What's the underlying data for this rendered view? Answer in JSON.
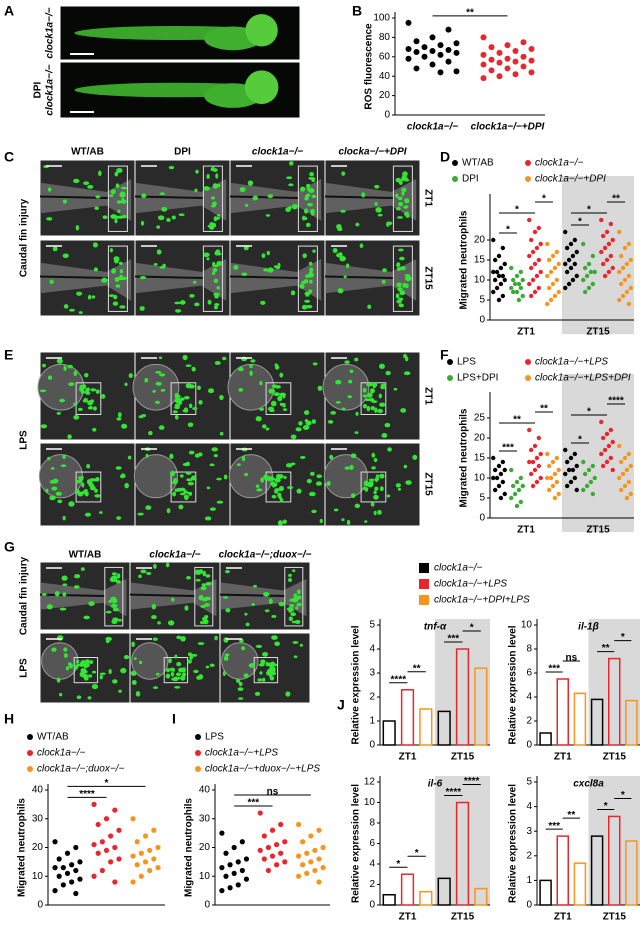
{
  "panel_labels": [
    "A",
    "B",
    "C",
    "D",
    "E",
    "F",
    "G",
    "H",
    "I",
    "J"
  ],
  "images": {
    "A": {
      "row_labels": [
        [
          "clock1a−/−"
        ],
        [
          "DPI",
          "clock1a−/−"
        ]
      ]
    },
    "C": {
      "column_labels": [
        "WT/AB",
        "DPI",
        "clock1a−/−",
        "clocka−/−+DPI"
      ],
      "row_labels": [
        "ZT1",
        "ZT15"
      ],
      "side_label": "Caudal fin injury"
    },
    "E": {
      "row_labels": [
        "ZT1",
        "ZT15"
      ],
      "side_label": "LPS"
    },
    "G": {
      "column_labels": [
        "WT/AB",
        "clock1a−/−",
        "clock1a−/−;duox−/−"
      ],
      "side_labels": [
        "Caudal fin injury",
        "LPS"
      ]
    }
  },
  "chart_data": [
    {
      "type": "strip",
      "ylabel": "ROS fluorescence",
      "categories": [
        "clock1a−/−",
        "clock1a−/−+DPI"
      ],
      "colors": [
        "#000000",
        "#e8262c"
      ],
      "values": [
        [
          95,
          88,
          80,
          76,
          74,
          72,
          70,
          68,
          67,
          66,
          65,
          64,
          62,
          60,
          58,
          55,
          52,
          48,
          45,
          44
        ],
        [
          80,
          75,
          72,
          70,
          68,
          66,
          64,
          62,
          60,
          58,
          57,
          56,
          55,
          54,
          52,
          50,
          48,
          46,
          44,
          42,
          40,
          38
        ]
      ],
      "ylim": [
        0,
        100
      ],
      "yticks": [
        0,
        20,
        40,
        60,
        80,
        100
      ],
      "significance": [
        {
          "label": "**",
          "pair": [
            0,
            1
          ]
        }
      ]
    },
    {
      "type": "strip",
      "ylabel": "Migrated neutrophils",
      "categories": [
        "ZT1",
        "ZT15"
      ],
      "shaded_category": 1,
      "series": [
        {
          "name": "WT/AB",
          "color": "#000000",
          "values": [
            [
              20,
              18,
              16,
              15,
              14,
              13,
              12,
              12,
              11,
              11,
              10,
              10,
              9,
              8,
              7,
              6,
              5
            ],
            [
              22,
              20,
              19,
              18,
              17,
              16,
              15,
              14,
              14,
              13,
              12,
              11,
              10,
              9,
              8
            ]
          ]
        },
        {
          "name": "DPI",
          "color": "#3aa935",
          "values": [
            [
              13,
              12,
              11,
              10,
              10,
              9,
              9,
              8,
              8,
              7,
              7,
              6,
              5
            ],
            [
              19,
              16,
              14,
              13,
              12,
              12,
              11,
              10,
              9,
              8,
              7
            ]
          ]
        },
        {
          "name": "clock1a−/−",
          "color": "#e8262c",
          "values": [
            [
              25,
              23,
              22,
              20,
              19,
              18,
              17,
              16,
              15,
              14,
              13,
              12,
              11,
              10,
              9,
              8,
              7,
              6
            ],
            [
              25,
              24,
              22,
              21,
              20,
              19,
              18,
              17,
              16,
              15,
              14,
              13,
              12,
              11
            ]
          ]
        },
        {
          "name": "clock1a−/−+DPI",
          "color": "#f7941d",
          "values": [
            [
              19,
              17,
              16,
              15,
              14,
              13,
              12,
              11,
              10,
              9,
              8,
              7,
              6,
              5,
              4
            ],
            [
              22,
              19,
              18,
              16,
              15,
              14,
              13,
              12,
              11,
              10,
              9,
              8,
              7,
              6,
              5,
              4
            ]
          ]
        }
      ],
      "ylim": [
        0,
        30
      ],
      "yticks": [
        0,
        5,
        10,
        15,
        20
      ],
      "significance": [
        {
          "label": "*",
          "pair": [
            0,
            1
          ]
        },
        {
          "label": "*",
          "pair": [
            0,
            2
          ]
        },
        {
          "label": "*",
          "pair": [
            2,
            3
          ]
        },
        {
          "label": "*",
          "pair": [
            4,
            5
          ]
        },
        {
          "label": "*",
          "pair": [
            4,
            6
          ]
        },
        {
          "label": "**",
          "pair": [
            6,
            7
          ]
        }
      ]
    },
    {
      "type": "strip",
      "ylabel": "Migrated neutrophils",
      "categories": [
        "ZT1",
        "ZT15"
      ],
      "shaded_category": 1,
      "series": [
        {
          "name": "LPS",
          "color": "#000000",
          "values": [
            [
              15,
              14,
              13,
              12,
              12,
              11,
              10,
              10,
              9,
              8,
              7,
              6,
              5
            ],
            [
              17,
              16,
              15,
              14,
              13,
              12,
              12,
              11,
              10,
              9,
              8,
              7
            ]
          ]
        },
        {
          "name": "LPS+DPI",
          "color": "#3aa935",
          "values": [
            [
              12,
              10,
              9,
              8,
              8,
              7,
              6,
              5,
              4,
              3
            ],
            [
              14,
              13,
              12,
              11,
              10,
              9,
              8,
              7,
              6
            ]
          ]
        },
        {
          "name": "clock1a−/−+LPS",
          "color": "#e8262c",
          "values": [
            [
              22,
              20,
              18,
              17,
              16,
              15,
              14,
              14,
              13,
              12,
              11,
              10,
              9,
              8
            ],
            [
              24,
              22,
              21,
              20,
              19,
              18,
              17,
              16,
              15,
              14,
              13,
              12
            ]
          ]
        },
        {
          "name": "clock1a−/−+LPS+DPI",
          "color": "#f7941d",
          "values": [
            [
              16,
              15,
              14,
              13,
              12,
              11,
              10,
              10,
              9,
              8,
              7,
              6,
              5
            ],
            [
              18,
              16,
              15,
              14,
              13,
              12,
              11,
              10,
              9,
              8,
              7,
              6,
              5
            ]
          ]
        }
      ],
      "ylim": [
        0,
        30
      ],
      "yticks": [
        0,
        5,
        10,
        15,
        20,
        25
      ],
      "significance": [
        {
          "label": "***",
          "pair": [
            0,
            1
          ]
        },
        {
          "label": "**",
          "pair": [
            0,
            2
          ]
        },
        {
          "label": "**",
          "pair": [
            2,
            3
          ]
        },
        {
          "label": "*",
          "pair": [
            4,
            5
          ]
        },
        {
          "label": "*",
          "pair": [
            4,
            6
          ]
        },
        {
          "label": "****",
          "pair": [
            6,
            7
          ]
        }
      ]
    },
    {
      "type": "strip",
      "ylabel": "Migrated neutrophils",
      "series": [
        {
          "name": "WT/AB",
          "color": "#000000",
          "values": [
            22,
            20,
            18,
            16,
            15,
            14,
            13,
            13,
            12,
            11,
            10,
            9,
            8,
            7,
            5,
            4
          ]
        },
        {
          "name": "clock1a−/−",
          "color": "#e8262c",
          "values": [
            35,
            33,
            30,
            28,
            26,
            24,
            22,
            21,
            20,
            19,
            18,
            16,
            15,
            12,
            10,
            8
          ]
        },
        {
          "name": "clock1a−/−;duox−/−",
          "color": "#f7941d",
          "values": [
            30,
            26,
            24,
            22,
            20,
            19,
            18,
            17,
            16,
            15,
            14,
            13,
            12,
            10,
            8
          ]
        }
      ],
      "ylim": [
        0,
        40
      ],
      "yticks": [
        0,
        10,
        20,
        30,
        40
      ],
      "significance": [
        {
          "label": "****",
          "pair": [
            0,
            1
          ]
        },
        {
          "label": "*",
          "pair": [
            0,
            2
          ]
        }
      ]
    },
    {
      "type": "strip",
      "ylabel": "Migrated neutrophils",
      "series": [
        {
          "name": "LPS",
          "color": "#000000",
          "values": [
            25,
            22,
            20,
            18,
            16,
            15,
            14,
            13,
            12,
            11,
            10,
            9,
            7,
            6,
            5
          ]
        },
        {
          "name": "clock1a−/−+LPS",
          "color": "#e8262c",
          "values": [
            32,
            28,
            26,
            24,
            22,
            21,
            20,
            19,
            18,
            17,
            16,
            15,
            14,
            12
          ]
        },
        {
          "name": "clock1a−/−+duox−/−+LPS",
          "color": "#f7941d",
          "values": [
            28,
            26,
            24,
            22,
            20,
            19,
            18,
            17,
            16,
            15,
            14,
            13,
            12,
            11,
            10,
            8
          ]
        }
      ],
      "ylim": [
        0,
        40
      ],
      "yticks": [
        0,
        10,
        20,
        30,
        40
      ],
      "significance": [
        {
          "label": "***",
          "pair": [
            0,
            1
          ]
        },
        {
          "label": "ns",
          "pair": [
            0,
            2
          ]
        }
      ]
    },
    {
      "type": "bar-panels",
      "ylabel": "Relative expression level",
      "categories": [
        "ZT1",
        "ZT15"
      ],
      "shaded_category": 1,
      "series": [
        {
          "name": "clock1a−/−",
          "color": "#000000"
        },
        {
          "name": "clock1a−/−+LPS",
          "color": "#e8262c"
        },
        {
          "name": "clock1a−/−+DPI+LPS",
          "color": "#f7941d"
        }
      ],
      "panels": [
        {
          "title": "tnf-α",
          "ylim": [
            0,
            5
          ],
          "yticks": [
            0,
            1,
            2,
            3,
            4,
            5
          ],
          "values": [
            [
              1.0,
              1.4
            ],
            [
              2.3,
              4.0
            ],
            [
              1.5,
              3.2
            ]
          ],
          "significance": [
            {
              "label": "****",
              "pair": [
                0,
                1
              ]
            },
            {
              "label": "**",
              "pair": [
                1,
                2
              ]
            },
            {
              "label": "***",
              "pair": [
                3,
                4
              ]
            },
            {
              "label": "*",
              "pair": [
                4,
                5
              ]
            }
          ]
        },
        {
          "title": "il-1β",
          "ylim": [
            0,
            10
          ],
          "yticks": [
            0,
            2,
            4,
            6,
            8,
            10
          ],
          "values": [
            [
              1.0,
              3.8
            ],
            [
              5.5,
              7.2
            ],
            [
              4.3,
              3.7
            ]
          ],
          "significance": [
            {
              "label": "***",
              "pair": [
                0,
                1
              ]
            },
            {
              "label": "ns",
              "pair": [
                1,
                2
              ]
            },
            {
              "label": "**",
              "pair": [
                3,
                4
              ]
            },
            {
              "label": "*",
              "pair": [
                4,
                5
              ]
            }
          ]
        },
        {
          "title": "il-6",
          "ylim": [
            0,
            12
          ],
          "yticks": [
            0,
            2,
            4,
            6,
            8,
            10,
            12
          ],
          "values": [
            [
              1.0,
              2.6
            ],
            [
              3.0,
              10.0
            ],
            [
              1.3,
              1.6
            ]
          ],
          "significance": [
            {
              "label": "*",
              "pair": [
                0,
                1
              ]
            },
            {
              "label": "*",
              "pair": [
                1,
                2
              ]
            },
            {
              "label": "****",
              "pair": [
                3,
                4
              ]
            },
            {
              "label": "****",
              "pair": [
                4,
                5
              ]
            }
          ]
        },
        {
          "title": "cxcl8a",
          "ylim": [
            0,
            5
          ],
          "yticks": [
            0,
            1,
            2,
            3,
            4,
            5
          ],
          "values": [
            [
              1.0,
              2.8
            ],
            [
              2.8,
              3.6
            ],
            [
              1.7,
              2.6
            ]
          ],
          "significance": [
            {
              "label": "***",
              "pair": [
                0,
                1
              ]
            },
            {
              "label": "**",
              "pair": [
                1,
                2
              ]
            },
            {
              "label": "*",
              "pair": [
                3,
                4
              ]
            },
            {
              "label": "*",
              "pair": [
                4,
                5
              ]
            }
          ]
        }
      ]
    }
  ]
}
